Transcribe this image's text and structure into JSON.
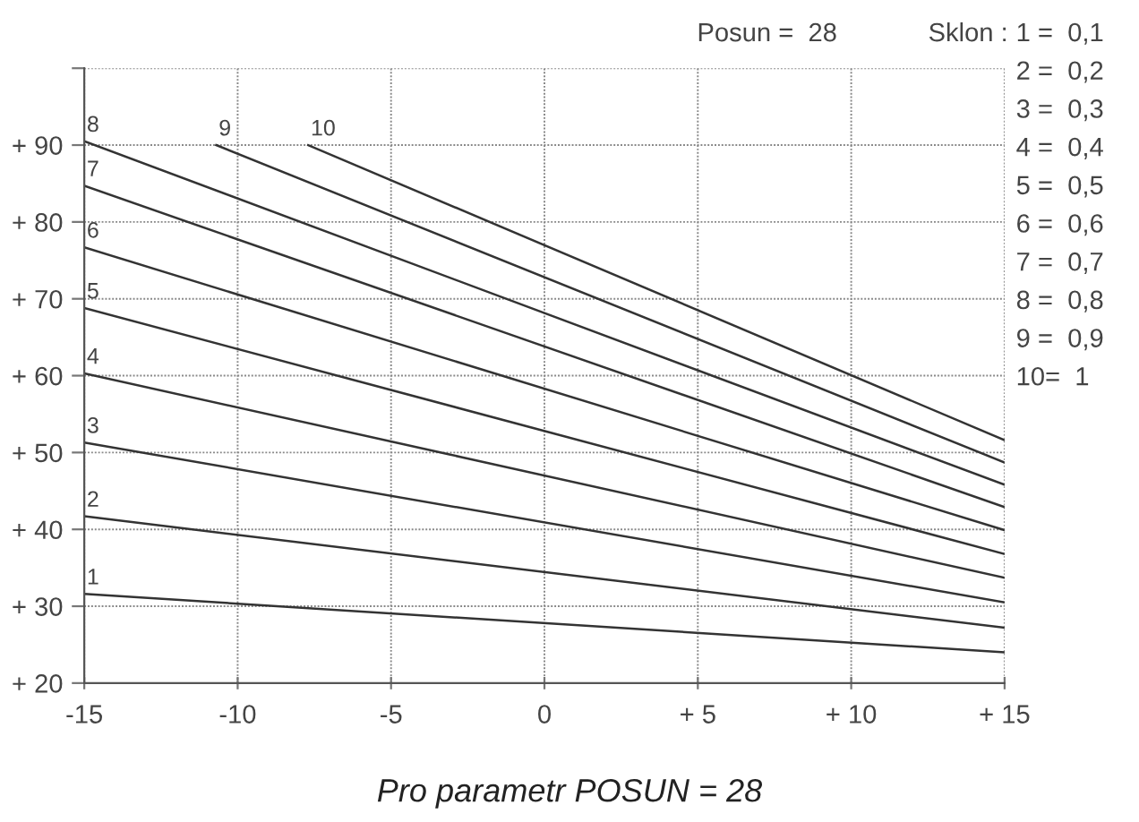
{
  "chart_data": {
    "type": "line",
    "title": "Pro parametr POSUN = 28",
    "series": [
      {
        "name": "1",
        "color": "#333333",
        "x": [
          -15,
          15
        ],
        "values": [
          31.6,
          24.0
        ]
      },
      {
        "name": "2",
        "color": "#333333",
        "x": [
          -15,
          15
        ],
        "values": [
          41.7,
          27.2
        ]
      },
      {
        "name": "3",
        "color": "#333333",
        "x": [
          -15,
          15
        ],
        "values": [
          51.3,
          30.5
        ]
      },
      {
        "name": "4",
        "color": "#333333",
        "x": [
          -15,
          15
        ],
        "values": [
          60.3,
          33.7
        ]
      },
      {
        "name": "5",
        "color": "#333333",
        "x": [
          -15,
          15
        ],
        "values": [
          68.8,
          36.8
        ]
      },
      {
        "name": "6",
        "color": "#333333",
        "x": [
          -15,
          15
        ],
        "values": [
          76.7,
          39.9
        ]
      },
      {
        "name": "7",
        "color": "#333333",
        "x": [
          -15,
          15
        ],
        "values": [
          84.7,
          42.9
        ]
      },
      {
        "name": "8",
        "color": "#333333",
        "x": [
          -15,
          15
        ],
        "values": [
          90.5,
          45.8
        ]
      },
      {
        "name": "9",
        "color": "#333333",
        "x": [
          -10.7,
          15
        ],
        "values": [
          90,
          48.7
        ]
      },
      {
        "name": "10",
        "color": "#333333",
        "x": [
          -7.7,
          15
        ],
        "values": [
          90,
          51.6
        ]
      }
    ],
    "xlim": [
      -15,
      15
    ],
    "ylim": [
      20,
      100
    ],
    "xticks": [
      -15,
      -10,
      -5,
      0,
      {
        "value": 5,
        "label": "+ 5"
      },
      {
        "value": 10,
        "label": "+ 10"
      },
      {
        "value": 15,
        "label": "+ 15"
      }
    ],
    "yticks": [
      {
        "value": 20,
        "label": "+ 20"
      },
      {
        "value": 30,
        "label": "+ 30"
      },
      {
        "value": 40,
        "label": "+ 40"
      },
      {
        "value": 50,
        "label": "+ 50"
      },
      {
        "value": 60,
        "label": "+ 60"
      },
      {
        "value": 70,
        "label": "+ 70"
      },
      {
        "value": 80,
        "label": "+ 80"
      },
      {
        "value": 90,
        "label": "+ 90"
      },
      {
        "value": 100,
        "label": null
      }
    ],
    "grid": true,
    "marker": "none",
    "line_style": "solid",
    "annotations": [
      "Posun =  28",
      "Sklon :",
      "1 =  0,1",
      "2 =  0,2",
      "3 =  0,3",
      "4 =  0,4",
      "5 =  0,5",
      "6 =  0,6",
      "7 =  0,7",
      "8 =  0,8",
      "9 =  0,9",
      "10=  1"
    ]
  }
}
